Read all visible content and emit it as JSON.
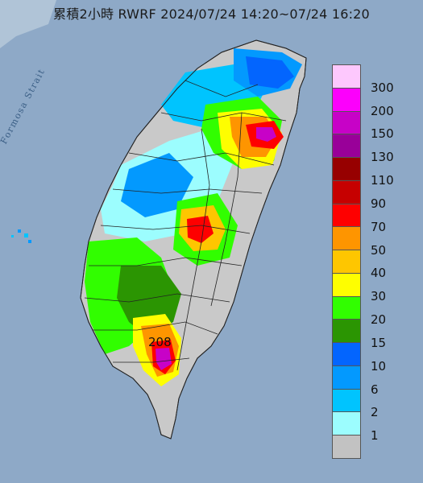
{
  "title": "累積2小時 RWRF 2024/07/24 14:20~07/24 16:20",
  "sea_label": "Formosa Strait",
  "peak_label": "208",
  "legend": [
    {
      "label": "300",
      "color": "#fdc8fd"
    },
    {
      "label": "200",
      "color": "#fc00fc"
    },
    {
      "label": "150",
      "color": "#c702c7"
    },
    {
      "label": "130",
      "color": "#990099"
    },
    {
      "label": "110",
      "color": "#970000"
    },
    {
      "label": "90",
      "color": "#c60000"
    },
    {
      "label": "70",
      "color": "#fe0000"
    },
    {
      "label": "50",
      "color": "#fe9500"
    },
    {
      "label": "40",
      "color": "#fec600"
    },
    {
      "label": "30",
      "color": "#fefe00"
    },
    {
      "label": "20",
      "color": "#31fe00"
    },
    {
      "label": "15",
      "color": "#2b9502"
    },
    {
      "label": "10",
      "color": "#0365fe"
    },
    {
      "label": "6",
      "color": "#0399fe"
    },
    {
      "label": "2",
      "color": "#00c4fe"
    },
    {
      "label": "1",
      "color": "#9cfdfe"
    },
    {
      "label": "",
      "color": "#c2c2c2"
    }
  ]
}
